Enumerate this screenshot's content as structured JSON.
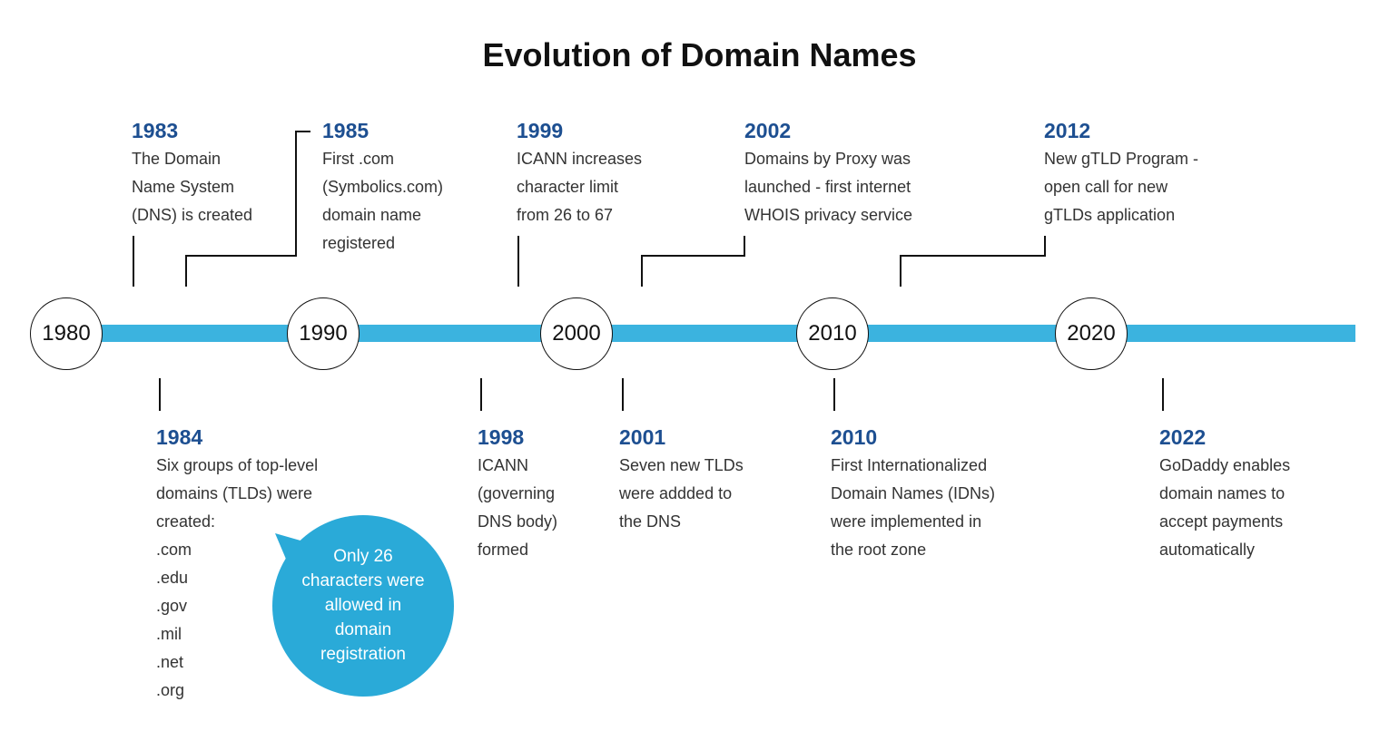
{
  "title": "Evolution of Domain Names",
  "colors": {
    "timeline": "#3bb3df",
    "year": "#1d4f91",
    "bubble": "#2aaad8"
  },
  "decades": [
    "1980",
    "1990",
    "2000",
    "2010",
    "2020"
  ],
  "top_events": [
    {
      "year": "1983",
      "lines": [
        "The Domain",
        "Name System",
        "(DNS) is created"
      ]
    },
    {
      "year": "1985",
      "lines": [
        "First .com",
        "(Symbolics.com)",
        "domain name",
        "registered"
      ]
    },
    {
      "year": "1999",
      "lines": [
        "ICANN increases",
        "character limit",
        "from 26 to 67"
      ]
    },
    {
      "year": "2002",
      "lines": [
        "Domains by Proxy was",
        "launched - first internet",
        "WHOIS privacy service"
      ]
    },
    {
      "year": "2012",
      "lines": [
        "New gTLD Program -",
        "open call for new",
        "gTLDs application"
      ]
    }
  ],
  "bottom_events": [
    {
      "year": "1984",
      "lines": [
        "Six groups of top-level",
        "domains (TLDs) were",
        "created:",
        ".com",
        ".edu",
        ".gov",
        ".mil",
        ".net",
        ".org"
      ]
    },
    {
      "year": "1998",
      "lines": [
        "ICANN",
        "(governing",
        "DNS body)",
        "formed"
      ]
    },
    {
      "year": "2001",
      "lines": [
        "Seven new TLDs",
        "were addded to",
        "the DNS"
      ]
    },
    {
      "year": "2010",
      "lines": [
        "First Internationalized",
        "Domain Names (IDNs)",
        "were implemented in",
        "the root zone"
      ]
    },
    {
      "year": "2022",
      "lines": [
        "GoDaddy enables",
        "domain names to",
        "accept payments",
        "automatically"
      ]
    }
  ],
  "callout": {
    "lines": [
      "Only 26",
      "characters were",
      "allowed in",
      "domain",
      "registration"
    ]
  }
}
